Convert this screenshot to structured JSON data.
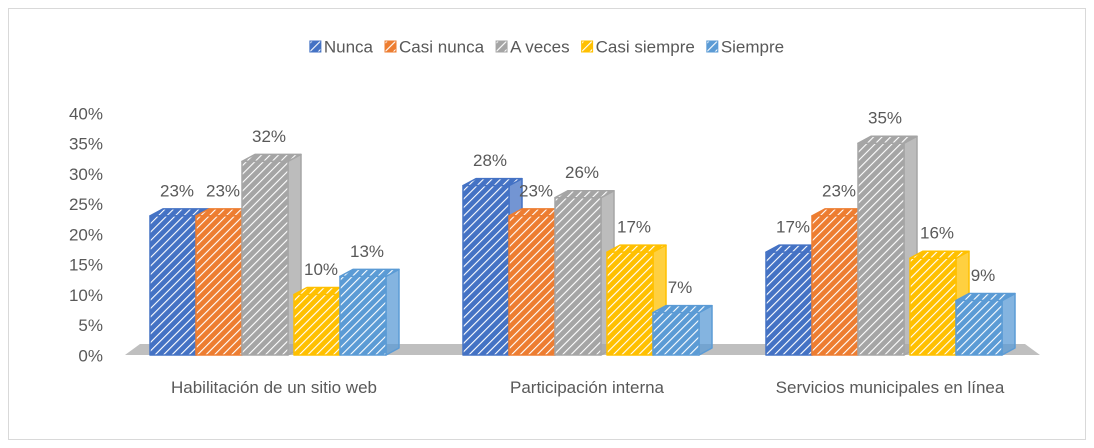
{
  "chart_data": {
    "type": "bar3d",
    "categories": [
      "Habilitación de un sitio web",
      "Participación interna",
      "Servicios municipales en línea"
    ],
    "series": [
      {
        "name": "Nunca",
        "color": "#4472c4",
        "values": [
          23,
          28,
          17
        ],
        "value_labels": [
          "23%",
          "28%",
          "17%"
        ]
      },
      {
        "name": "Casi nunca",
        "color": "#ed7d31",
        "values": [
          23,
          23,
          23
        ],
        "value_labels": [
          "23%",
          "23%",
          "23%"
        ]
      },
      {
        "name": "A veces",
        "color": "#a5a5a5",
        "values": [
          32,
          26,
          35
        ],
        "value_labels": [
          "32%",
          "26%",
          "35%"
        ]
      },
      {
        "name": "Casi siempre",
        "color": "#ffc000",
        "values": [
          10,
          17,
          16
        ],
        "value_labels": [
          "10%",
          "17%",
          "16%"
        ]
      },
      {
        "name": "Siempre",
        "color": "#5b9bd5",
        "values": [
          13,
          7,
          9
        ],
        "value_labels": [
          "13%",
          "7%",
          "9%"
        ]
      }
    ],
    "ylim": [
      0,
      40
    ],
    "yticks": [
      {
        "value": 0,
        "label": "0%"
      },
      {
        "value": 5,
        "label": "5%"
      },
      {
        "value": 10,
        "label": "10%"
      },
      {
        "value": 15,
        "label": "15%"
      },
      {
        "value": 20,
        "label": "20%"
      },
      {
        "value": 25,
        "label": "25%"
      },
      {
        "value": 30,
        "label": "30%"
      },
      {
        "value": 35,
        "label": "35%"
      },
      {
        "value": 40,
        "label": "40%"
      }
    ],
    "legend": "top",
    "grid": false
  }
}
